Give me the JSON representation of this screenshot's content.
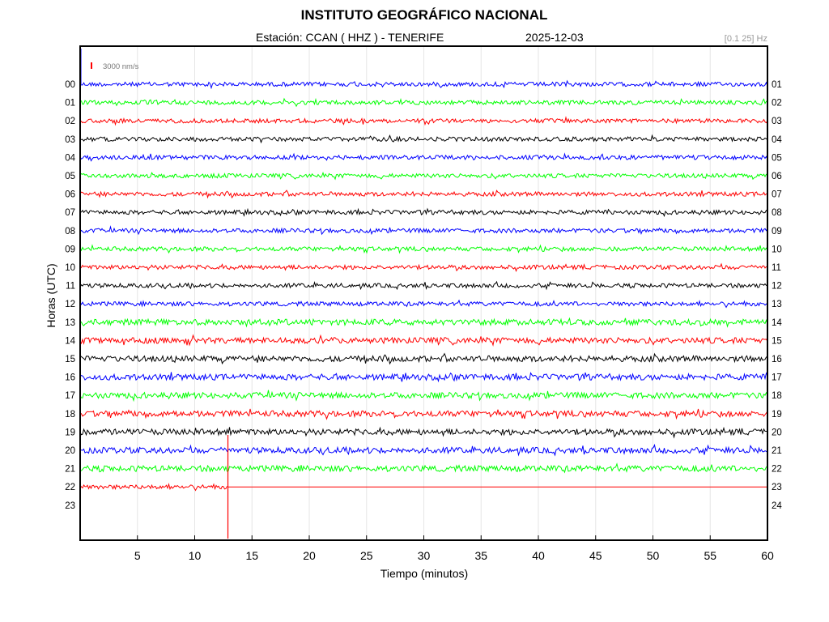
{
  "header": {
    "title": "INSTITUTO GEOGRÁFICO NACIONAL",
    "station": "Estación:  CCAN ( HHZ ) - TENERIFE",
    "date": "2025-12-03",
    "filter": "[0.1 25] Hz"
  },
  "chart_data": {
    "type": "line",
    "title": "INSTITUTO GEOGRÁFICO NACIONAL",
    "xlabel": "Tiempo (minutos)",
    "ylabel": "Horas (UTC)",
    "xlim": [
      0,
      60
    ],
    "x_ticks": [
      "5",
      "10",
      "15",
      "20",
      "25",
      "30",
      "35",
      "40",
      "45",
      "50",
      "55",
      "60"
    ],
    "left_ticks": [
      "00",
      "01",
      "02",
      "03",
      "04",
      "05",
      "06",
      "07",
      "08",
      "09",
      "10",
      "11",
      "12",
      "13",
      "14",
      "15",
      "16",
      "17",
      "18",
      "19",
      "20",
      "21",
      "22",
      "23"
    ],
    "right_ticks": [
      "01",
      "02",
      "03",
      "04",
      "05",
      "06",
      "07",
      "08",
      "09",
      "10",
      "11",
      "12",
      "13",
      "14",
      "15",
      "16",
      "17",
      "18",
      "19",
      "20",
      "21",
      "22",
      "23",
      "24"
    ],
    "scale_label": "3000 nm/s",
    "grid": true,
    "color_cycle": [
      "#0000ff",
      "#00ff00",
      "#ff0000",
      "#000000"
    ],
    "traces": [
      {
        "hour": "00",
        "color": "#0000ff",
        "end_min": 60
      },
      {
        "hour": "01",
        "color": "#00ff00",
        "end_min": 60
      },
      {
        "hour": "02",
        "color": "#ff0000",
        "end_min": 60
      },
      {
        "hour": "03",
        "color": "#000000",
        "end_min": 60
      },
      {
        "hour": "04",
        "color": "#0000ff",
        "end_min": 60
      },
      {
        "hour": "05",
        "color": "#00ff00",
        "end_min": 60
      },
      {
        "hour": "06",
        "color": "#ff0000",
        "end_min": 60
      },
      {
        "hour": "07",
        "color": "#000000",
        "end_min": 60
      },
      {
        "hour": "08",
        "color": "#0000ff",
        "end_min": 60
      },
      {
        "hour": "09",
        "color": "#00ff00",
        "end_min": 60
      },
      {
        "hour": "10",
        "color": "#ff0000",
        "end_min": 60
      },
      {
        "hour": "11",
        "color": "#000000",
        "end_min": 60
      },
      {
        "hour": "12",
        "color": "#0000ff",
        "end_min": 60
      },
      {
        "hour": "13",
        "color": "#00ff00",
        "end_min": 60
      },
      {
        "hour": "14",
        "color": "#ff0000",
        "end_min": 60
      },
      {
        "hour": "15",
        "color": "#000000",
        "end_min": 60
      },
      {
        "hour": "16",
        "color": "#0000ff",
        "end_min": 60
      },
      {
        "hour": "17",
        "color": "#00ff00",
        "end_min": 60
      },
      {
        "hour": "18",
        "color": "#ff0000",
        "end_min": 60
      },
      {
        "hour": "19",
        "color": "#000000",
        "end_min": 60
      },
      {
        "hour": "20",
        "color": "#0000ff",
        "end_min": 60
      },
      {
        "hour": "21",
        "color": "#00ff00",
        "end_min": 60
      },
      {
        "hour": "22",
        "color": "#ff0000",
        "end_min": 12.9,
        "flatline_after": true
      },
      {
        "hour": "23",
        "color": "#000000",
        "end_min": 0
      }
    ],
    "spike_min": 12.9
  }
}
